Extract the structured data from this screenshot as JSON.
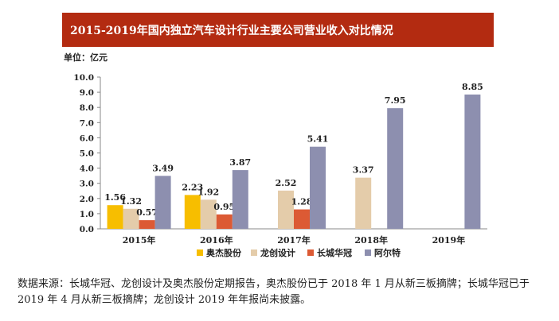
{
  "source_note": "数据来源：长城华冠、龙创设计及奥杰股份定期报告，奥杰股份已于 2018 年 1 月从新三板摘牌；长城华冠已于 2019 年 4 月从新三板摘牌；龙创设计 2019 年年报尚未披露。",
  "chart_data": {
    "type": "bar",
    "title": "2015-2019年国内独立汽车设计行业主要公司营业收入对比情况",
    "ylabel": "单位：亿元",
    "xlabel": "",
    "ylim": [
      0,
      10
    ],
    "yticks": [
      "0.0",
      "1.0",
      "2.0",
      "3.0",
      "4.0",
      "5.0",
      "6.0",
      "7.0",
      "8.0",
      "9.0",
      "10.0"
    ],
    "categories": [
      "2015年",
      "2016年",
      "2017年",
      "2018年",
      "2019年"
    ],
    "series": [
      {
        "name": "奥杰股份",
        "color": "#f7be00",
        "values": [
          1.56,
          2.23,
          null,
          null,
          null
        ]
      },
      {
        "name": "龙创设计",
        "color": "#e4ccaa",
        "values": [
          1.32,
          1.92,
          2.52,
          3.37,
          null
        ]
      },
      {
        "name": "长城华冠",
        "color": "#dc5a34",
        "values": [
          0.57,
          0.95,
          1.28,
          null,
          null
        ]
      },
      {
        "name": "阿尔特",
        "color": "#8d8faf",
        "values": [
          3.49,
          3.87,
          5.41,
          7.95,
          8.85
        ]
      }
    ],
    "value_labels": [
      [
        "1.56",
        "2.23",
        null,
        null,
        null
      ],
      [
        "1.32",
        "1.92",
        "2.52",
        "3.37",
        null
      ],
      [
        "0.57",
        "0.95",
        "1.28",
        null,
        null
      ],
      [
        "3.49",
        "3.87",
        "5.41",
        "7.95",
        "8.85"
      ]
    ],
    "legend_position": "bottom",
    "grid": false
  }
}
